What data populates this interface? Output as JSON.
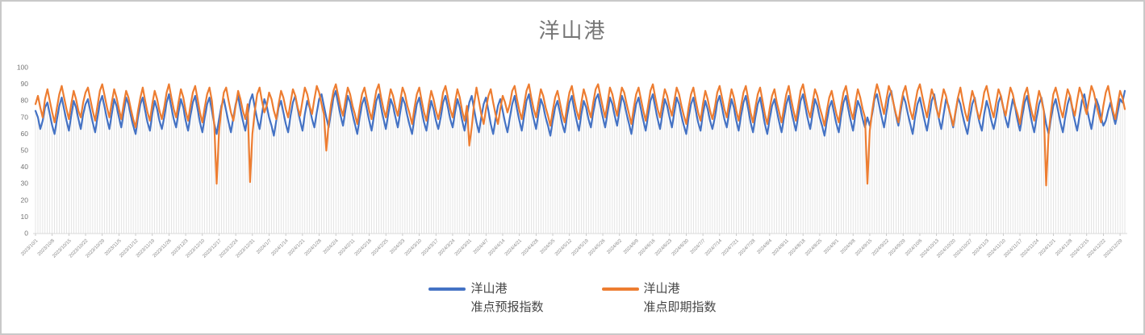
{
  "window": {
    "background": "#ffffff",
    "border_color": "#c9c9c9"
  },
  "chart": {
    "title": "洋山港",
    "title_color": "#767676",
    "legend": [
      {
        "label": "洋山港\n准点预报指数",
        "color": "#4472C4"
      },
      {
        "label": "洋山港\n准点即期指数",
        "color": "#ED7D31"
      }
    ]
  },
  "chart_data": {
    "type": "line",
    "title": "洋山港",
    "x_start": "2023/10/1",
    "x_end": "2024/12/31",
    "x_frequency": "daily",
    "x_tick_interval_days": 7,
    "x_tick_labels": [
      "2023/10/1",
      "2023/10/8",
      "2023/10/15",
      "2023/10/22",
      "2023/10/29",
      "2023/11/5",
      "2023/11/12",
      "2023/11/19",
      "2023/11/26",
      "2023/12/3",
      "2023/12/10",
      "2023/12/17",
      "2023/12/24",
      "2023/12/31",
      "2024/1/7",
      "2024/1/14",
      "2024/1/21",
      "2024/1/28",
      "2024/2/4",
      "2024/2/11",
      "2024/2/18",
      "2024/2/25",
      "2024/3/3",
      "2024/3/10",
      "2024/3/17",
      "2024/3/24",
      "2024/3/31",
      "2024/4/7",
      "2024/4/14",
      "2024/4/21",
      "2024/4/28",
      "2024/5/5",
      "2024/5/12",
      "2024/5/19",
      "2024/5/26",
      "2024/6/2",
      "2024/6/9",
      "2024/6/16",
      "2024/6/23",
      "2024/6/30",
      "2024/7/7",
      "2024/7/14",
      "2024/7/21",
      "2024/7/28",
      "2024/8/4",
      "2024/8/11",
      "2024/8/18",
      "2024/8/25",
      "2024/9/1",
      "2024/9/8",
      "2024/9/15",
      "2024/9/22",
      "2024/9/29",
      "2024/10/6",
      "2024/10/13",
      "2024/10/20",
      "2024/10/27",
      "2024/11/3",
      "2024/11/10",
      "2024/11/17",
      "2024/11/24",
      "2024/12/1",
      "2024/12/8",
      "2024/12/15",
      "2024/12/22",
      "2024/12/29"
    ],
    "ylim": [
      0,
      100
    ],
    "y_ticks": [
      0,
      10,
      20,
      30,
      40,
      50,
      60,
      70,
      80,
      90,
      100
    ],
    "grid": "vertical-drop-lines-per-day",
    "legend_position": "bottom",
    "colors": {
      "drop_line": "#d9d9d9",
      "axis": "#d9d9d9",
      "tick": "#bfbfbf",
      "tick_label": "#8a8a8a",
      "y_label": "#737373"
    },
    "series": [
      {
        "name": "洋山港 准点预报指数",
        "color": "#4472C4",
        "values": [
          74,
          70,
          63,
          68,
          76,
          79,
          72,
          65,
          60,
          69,
          77,
          82,
          75,
          68,
          62,
          71,
          80,
          76,
          69,
          63,
          72,
          78,
          81,
          74,
          67,
          61,
          70,
          79,
          83,
          76,
          69,
          63,
          72,
          81,
          77,
          70,
          64,
          73,
          82,
          78,
          71,
          65,
          60,
          70,
          78,
          82,
          74,
          67,
          62,
          72,
          80,
          75,
          68,
          63,
          70,
          79,
          84,
          76,
          69,
          64,
          73,
          81,
          76,
          68,
          62,
          71,
          79,
          83,
          75,
          67,
          61,
          70,
          78,
          82,
          74,
          66,
          60,
          69,
          77,
          81,
          74,
          67,
          61,
          70,
          78,
          83,
          75,
          68,
          62,
          71,
          80,
          84,
          76,
          69,
          63,
          72,
          81,
          77,
          70,
          65,
          59,
          68,
          76,
          80,
          73,
          66,
          61,
          71,
          79,
          83,
          75,
          68,
          62,
          72,
          80,
          76,
          69,
          64,
          73,
          81,
          84,
          77,
          70,
          64,
          73,
          82,
          86,
          78,
          71,
          65,
          74,
          83,
          79,
          72,
          66,
          60,
          70,
          78,
          82,
          75,
          68,
          62,
          71,
          80,
          84,
          76,
          69,
          63,
          72,
          81,
          77,
          70,
          64,
          73,
          82,
          78,
          71,
          65,
          60,
          70,
          78,
          82,
          74,
          67,
          62,
          72,
          80,
          75,
          68,
          63,
          70,
          79,
          83,
          76,
          69,
          64,
          73,
          81,
          76,
          68,
          62,
          71,
          79,
          83,
          75,
          67,
          61,
          70,
          78,
          82,
          74,
          66,
          60,
          69,
          77,
          81,
          74,
          67,
          61,
          70,
          78,
          83,
          75,
          68,
          62,
          71,
          80,
          84,
          76,
          69,
          63,
          72,
          81,
          77,
          70,
          65,
          59,
          68,
          76,
          80,
          73,
          66,
          61,
          71,
          79,
          83,
          75,
          68,
          62,
          72,
          80,
          76,
          69,
          64,
          73,
          81,
          84,
          77,
          70,
          64,
          73,
          82,
          78,
          71,
          65,
          74,
          83,
          79,
          72,
          66,
          60,
          70,
          78,
          82,
          75,
          68,
          62,
          71,
          80,
          84,
          76,
          69,
          63,
          72,
          81,
          77,
          70,
          64,
          73,
          82,
          78,
          71,
          65,
          60,
          70,
          78,
          82,
          74,
          67,
          62,
          72,
          80,
          75,
          68,
          63,
          70,
          79,
          83,
          76,
          69,
          64,
          73,
          81,
          76,
          68,
          62,
          71,
          79,
          83,
          75,
          67,
          61,
          70,
          78,
          82,
          74,
          66,
          60,
          69,
          77,
          81,
          74,
          67,
          61,
          70,
          78,
          83,
          75,
          68,
          62,
          71,
          80,
          84,
          76,
          69,
          63,
          72,
          81,
          77,
          70,
          65,
          59,
          68,
          76,
          80,
          73,
          66,
          61,
          71,
          79,
          83,
          75,
          68,
          62,
          72,
          80,
          76,
          69,
          64,
          70,
          65,
          72,
          81,
          84,
          77,
          70,
          64,
          73,
          82,
          86,
          78,
          71,
          65,
          74,
          83,
          79,
          72,
          66,
          60,
          70,
          78,
          82,
          75,
          68,
          62,
          71,
          80,
          84,
          76,
          69,
          63,
          72,
          81,
          77,
          70,
          64,
          73,
          82,
          78,
          71,
          65,
          60,
          70,
          78,
          82,
          74,
          67,
          62,
          72,
          80,
          75,
          68,
          63,
          70,
          79,
          83,
          76,
          69,
          64,
          73,
          81,
          76,
          68,
          62,
          71,
          79,
          83,
          75,
          67,
          61,
          70,
          78,
          82,
          74,
          66,
          60,
          69,
          77,
          81,
          74,
          67,
          61,
          70,
          78,
          83,
          75,
          68,
          62,
          71,
          80,
          84,
          76,
          69,
          63,
          72,
          81,
          77,
          70,
          65,
          68,
          74,
          79,
          72,
          66,
          73,
          81,
          79,
          86
        ]
      },
      {
        "name": "洋山港 准点即期指数",
        "color": "#ED7D31",
        "values": [
          78,
          83,
          76,
          70,
          81,
          87,
          80,
          73,
          67,
          76,
          84,
          89,
          82,
          75,
          69,
          78,
          86,
          81,
          74,
          70,
          79,
          85,
          88,
          81,
          74,
          68,
          77,
          86,
          90,
          83,
          76,
          70,
          79,
          87,
          82,
          75,
          69,
          78,
          86,
          82,
          75,
          69,
          64,
          74,
          82,
          88,
          80,
          73,
          68,
          78,
          86,
          81,
          74,
          69,
          76,
          85,
          90,
          82,
          75,
          70,
          79,
          87,
          82,
          74,
          68,
          77,
          85,
          89,
          81,
          73,
          67,
          76,
          84,
          88,
          80,
          65,
          30,
          62,
          75,
          85,
          88,
          80,
          73,
          68,
          77,
          86,
          81,
          74,
          69,
          78,
          31,
          60,
          74,
          84,
          88,
          80,
          73,
          77,
          85,
          81,
          74,
          69,
          78,
          86,
          82,
          75,
          70,
          79,
          87,
          83,
          76,
          71,
          80,
          88,
          84,
          77,
          72,
          81,
          89,
          85,
          78,
          72,
          50,
          66,
          78,
          86,
          90,
          83,
          76,
          71,
          80,
          88,
          84,
          77,
          72,
          66,
          76,
          84,
          88,
          81,
          74,
          69,
          78,
          86,
          90,
          82,
          75,
          70,
          79,
          87,
          83,
          76,
          71,
          80,
          88,
          84,
          77,
          72,
          66,
          76,
          84,
          88,
          80,
          73,
          68,
          78,
          86,
          81,
          74,
          69,
          76,
          85,
          89,
          82,
          75,
          70,
          79,
          87,
          82,
          74,
          68,
          77,
          53,
          64,
          78,
          88,
          80,
          72,
          66,
          75,
          83,
          87,
          79,
          72,
          66,
          75,
          83,
          79,
          73,
          78,
          86,
          89,
          81,
          74,
          69,
          78,
          86,
          90,
          82,
          75,
          70,
          79,
          87,
          83,
          76,
          71,
          65,
          74,
          82,
          86,
          79,
          72,
          67,
          77,
          85,
          89,
          81,
          74,
          69,
          79,
          87,
          82,
          75,
          70,
          79,
          87,
          90,
          83,
          76,
          70,
          79,
          88,
          84,
          77,
          71,
          80,
          88,
          85,
          78,
          72,
          66,
          76,
          84,
          88,
          81,
          74,
          68,
          77,
          86,
          90,
          82,
          75,
          70,
          79,
          87,
          83,
          76,
          71,
          80,
          88,
          84,
          77,
          71,
          66,
          76,
          84,
          88,
          80,
          73,
          68,
          78,
          86,
          81,
          74,
          69,
          76,
          85,
          89,
          82,
          75,
          70,
          79,
          87,
          82,
          74,
          68,
          77,
          85,
          89,
          81,
          73,
          67,
          76,
          84,
          88,
          80,
          72,
          66,
          75,
          83,
          87,
          79,
          73,
          67,
          76,
          84,
          89,
          81,
          74,
          68,
          77,
          86,
          90,
          82,
          75,
          70,
          79,
          87,
          83,
          76,
          71,
          65,
          74,
          82,
          86,
          79,
          72,
          67,
          77,
          85,
          89,
          81,
          74,
          69,
          79,
          87,
          82,
          75,
          70,
          30,
          62,
          74,
          83,
          90,
          85,
          78,
          72,
          81,
          89,
          85,
          78,
          72,
          67,
          77,
          85,
          89,
          81,
          74,
          69,
          78,
          86,
          90,
          83,
          76,
          70,
          79,
          87,
          82,
          75,
          70,
          79,
          87,
          83,
          76,
          71,
          65,
          74,
          82,
          88,
          80,
          73,
          68,
          78,
          86,
          81,
          74,
          69,
          76,
          85,
          89,
          82,
          75,
          70,
          79,
          87,
          83,
          76,
          71,
          80,
          88,
          84,
          77,
          72,
          66,
          76,
          84,
          88,
          80,
          73,
          68,
          78,
          86,
          81,
          74,
          29,
          60,
          73,
          84,
          88,
          82,
          75,
          70,
          79,
          87,
          83,
          76,
          71,
          80,
          88,
          84,
          77,
          72,
          81,
          89,
          85,
          78,
          72,
          67,
          77,
          85,
          89,
          81,
          74,
          69,
          78,
          86,
          82,
          75
        ]
      }
    ]
  }
}
